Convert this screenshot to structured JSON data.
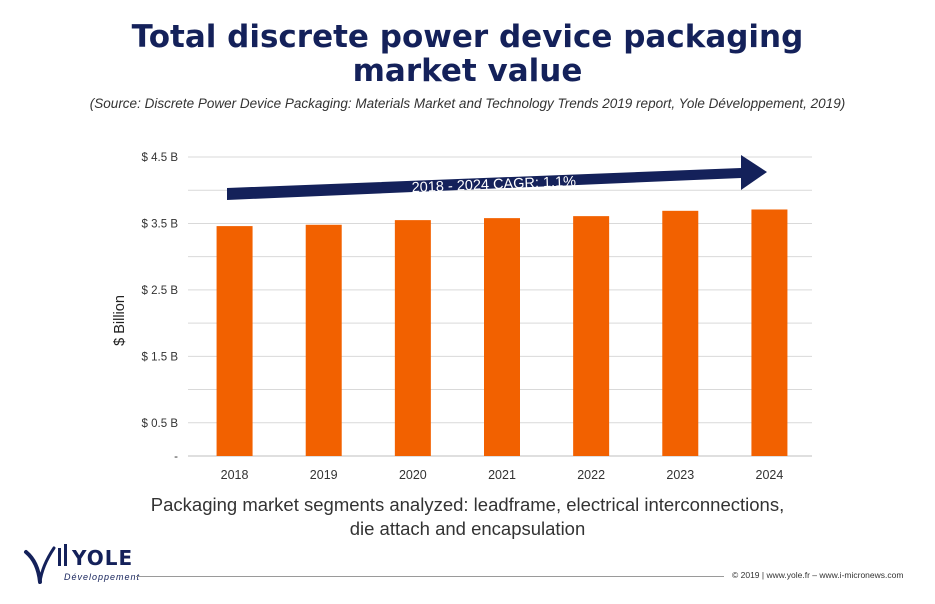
{
  "title_line1": "Total discrete power device packaging",
  "title_line2": "market value",
  "source": "(Source: Discrete Power Device Packaging: Materials Market and Technology Trends 2019 report, Yole Développement, 2019)",
  "caption_line1": "Packaging market segments analyzed: leadframe, electrical interconnections,",
  "caption_line2": "die attach and encapsulation",
  "logo": {
    "name": "YOLE",
    "sub": "Développement"
  },
  "footer": "© 2019 | www.yole.fr – www.i-micronews.com",
  "colors": {
    "bar": "#f26100",
    "title": "#14215a",
    "arrow": "#14215a"
  },
  "chart_data": {
    "type": "bar",
    "categories": [
      "2018",
      "2019",
      "2020",
      "2021",
      "2022",
      "2023",
      "2024"
    ],
    "values": [
      3.46,
      3.48,
      3.55,
      3.58,
      3.61,
      3.69,
      3.71
    ],
    "ylabel": "$ Billion",
    "ylim": [
      0,
      4.5
    ],
    "yticks": [
      {
        "value": 0,
        "label": "-"
      },
      {
        "value": 0.5,
        "label": "$ 0.5 B"
      },
      {
        "value": 1.5,
        "label": "$ 1.5 B"
      },
      {
        "value": 2.5,
        "label": "$ 2.5 B"
      },
      {
        "value": 3.5,
        "label": "$ 3.5 B"
      },
      {
        "value": 4.5,
        "label": "$ 4.5 B"
      }
    ],
    "gridlines": [
      0.5,
      1,
      1.5,
      2,
      2.5,
      3,
      3.5,
      4,
      4.5
    ],
    "annotation": "2018 - 2024 CAGR: 1.1%",
    "grid": true
  }
}
